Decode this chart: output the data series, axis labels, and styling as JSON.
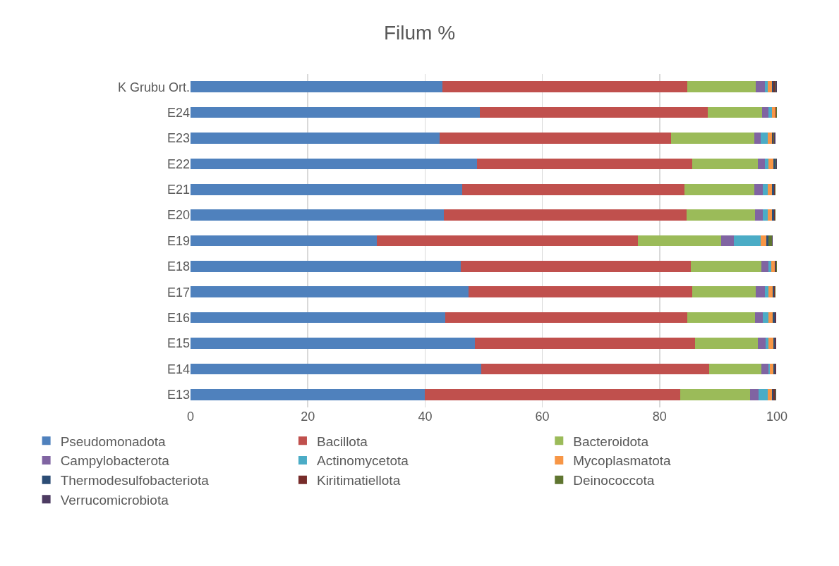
{
  "chart_data": {
    "type": "bar",
    "title": "Filum %",
    "orientation": "horizontal",
    "stacked": true,
    "grid": "x",
    "legend": "bottom",
    "categories": [
      "K Grubu Ort.",
      "E24",
      "E23",
      "E22",
      "E21",
      "E20",
      "E19",
      "E18",
      "E17",
      "E16",
      "E15",
      "E14",
      "E13"
    ],
    "xlim": [
      0,
      100
    ],
    "xticks": [
      0,
      20,
      40,
      60,
      80,
      100
    ],
    "series": [
      {
        "name": "Pseudomonadota",
        "color": "#4f81bd",
        "values": [
          42.9,
          49.3,
          42.5,
          48.9,
          46.3,
          43.2,
          31.8,
          46.1,
          47.4,
          43.5,
          48.5,
          49.6,
          39.9
        ]
      },
      {
        "name": "Bacillota",
        "color": "#c0504d",
        "values": [
          41.8,
          38.9,
          39.5,
          36.6,
          37.9,
          41.4,
          44.5,
          39.2,
          38.2,
          41.2,
          37.6,
          38.9,
          43.6
        ]
      },
      {
        "name": "Bacteroidota",
        "color": "#9bbb59",
        "values": [
          11.7,
          9.3,
          14.1,
          11.3,
          11.9,
          11.7,
          14.2,
          12.1,
          10.8,
          11.6,
          10.7,
          8.9,
          11.9
        ]
      },
      {
        "name": "Campylobacterota",
        "color": "#8064a2",
        "values": [
          1.5,
          1.1,
          1.1,
          1.1,
          1.5,
          1.3,
          2.1,
          1.2,
          1.6,
          1.3,
          1.3,
          1.1,
          1.5
        ]
      },
      {
        "name": "Actinomycetota",
        "color": "#4bacc6",
        "values": [
          0.5,
          0.6,
          1.2,
          0.7,
          0.8,
          0.8,
          4.6,
          0.4,
          0.6,
          1.0,
          0.5,
          0.3,
          1.5
        ]
      },
      {
        "name": "Mycoplasmatota",
        "color": "#f79646",
        "values": [
          0.7,
          0.5,
          0.7,
          0.8,
          0.8,
          0.8,
          1.0,
          0.6,
          0.7,
          0.7,
          0.8,
          0.6,
          0.7
        ]
      },
      {
        "name": "Thermodesulfobacteriota",
        "color": "#2c4d75",
        "values": [
          0.3,
          0.1,
          0.2,
          0.3,
          0.3,
          0.3,
          0.3,
          0.2,
          0.2,
          0.3,
          0.2,
          0.2,
          0.3
        ]
      },
      {
        "name": "Kiritimatiellota",
        "color": "#772c2a",
        "values": [
          0.2,
          0.1,
          0.1,
          0.1,
          0.1,
          0.1,
          0.1,
          0.1,
          0.1,
          0.1,
          0.1,
          0.1,
          0.2
        ]
      },
      {
        "name": "Deinococcota",
        "color": "#5f7530",
        "values": [
          0.2,
          0.1,
          0.1,
          0.1,
          0.1,
          0.1,
          0.5,
          0.1,
          0.1,
          0.1,
          0.1,
          0.1,
          0.1
        ]
      },
      {
        "name": "Verrucomicrobiota",
        "color": "#4d3b62",
        "values": [
          0.2,
          0.1,
          0.2,
          0.1,
          0.1,
          0.1,
          0.2,
          0.1,
          0.1,
          0.1,
          0.1,
          0.1,
          0.2
        ]
      }
    ]
  }
}
